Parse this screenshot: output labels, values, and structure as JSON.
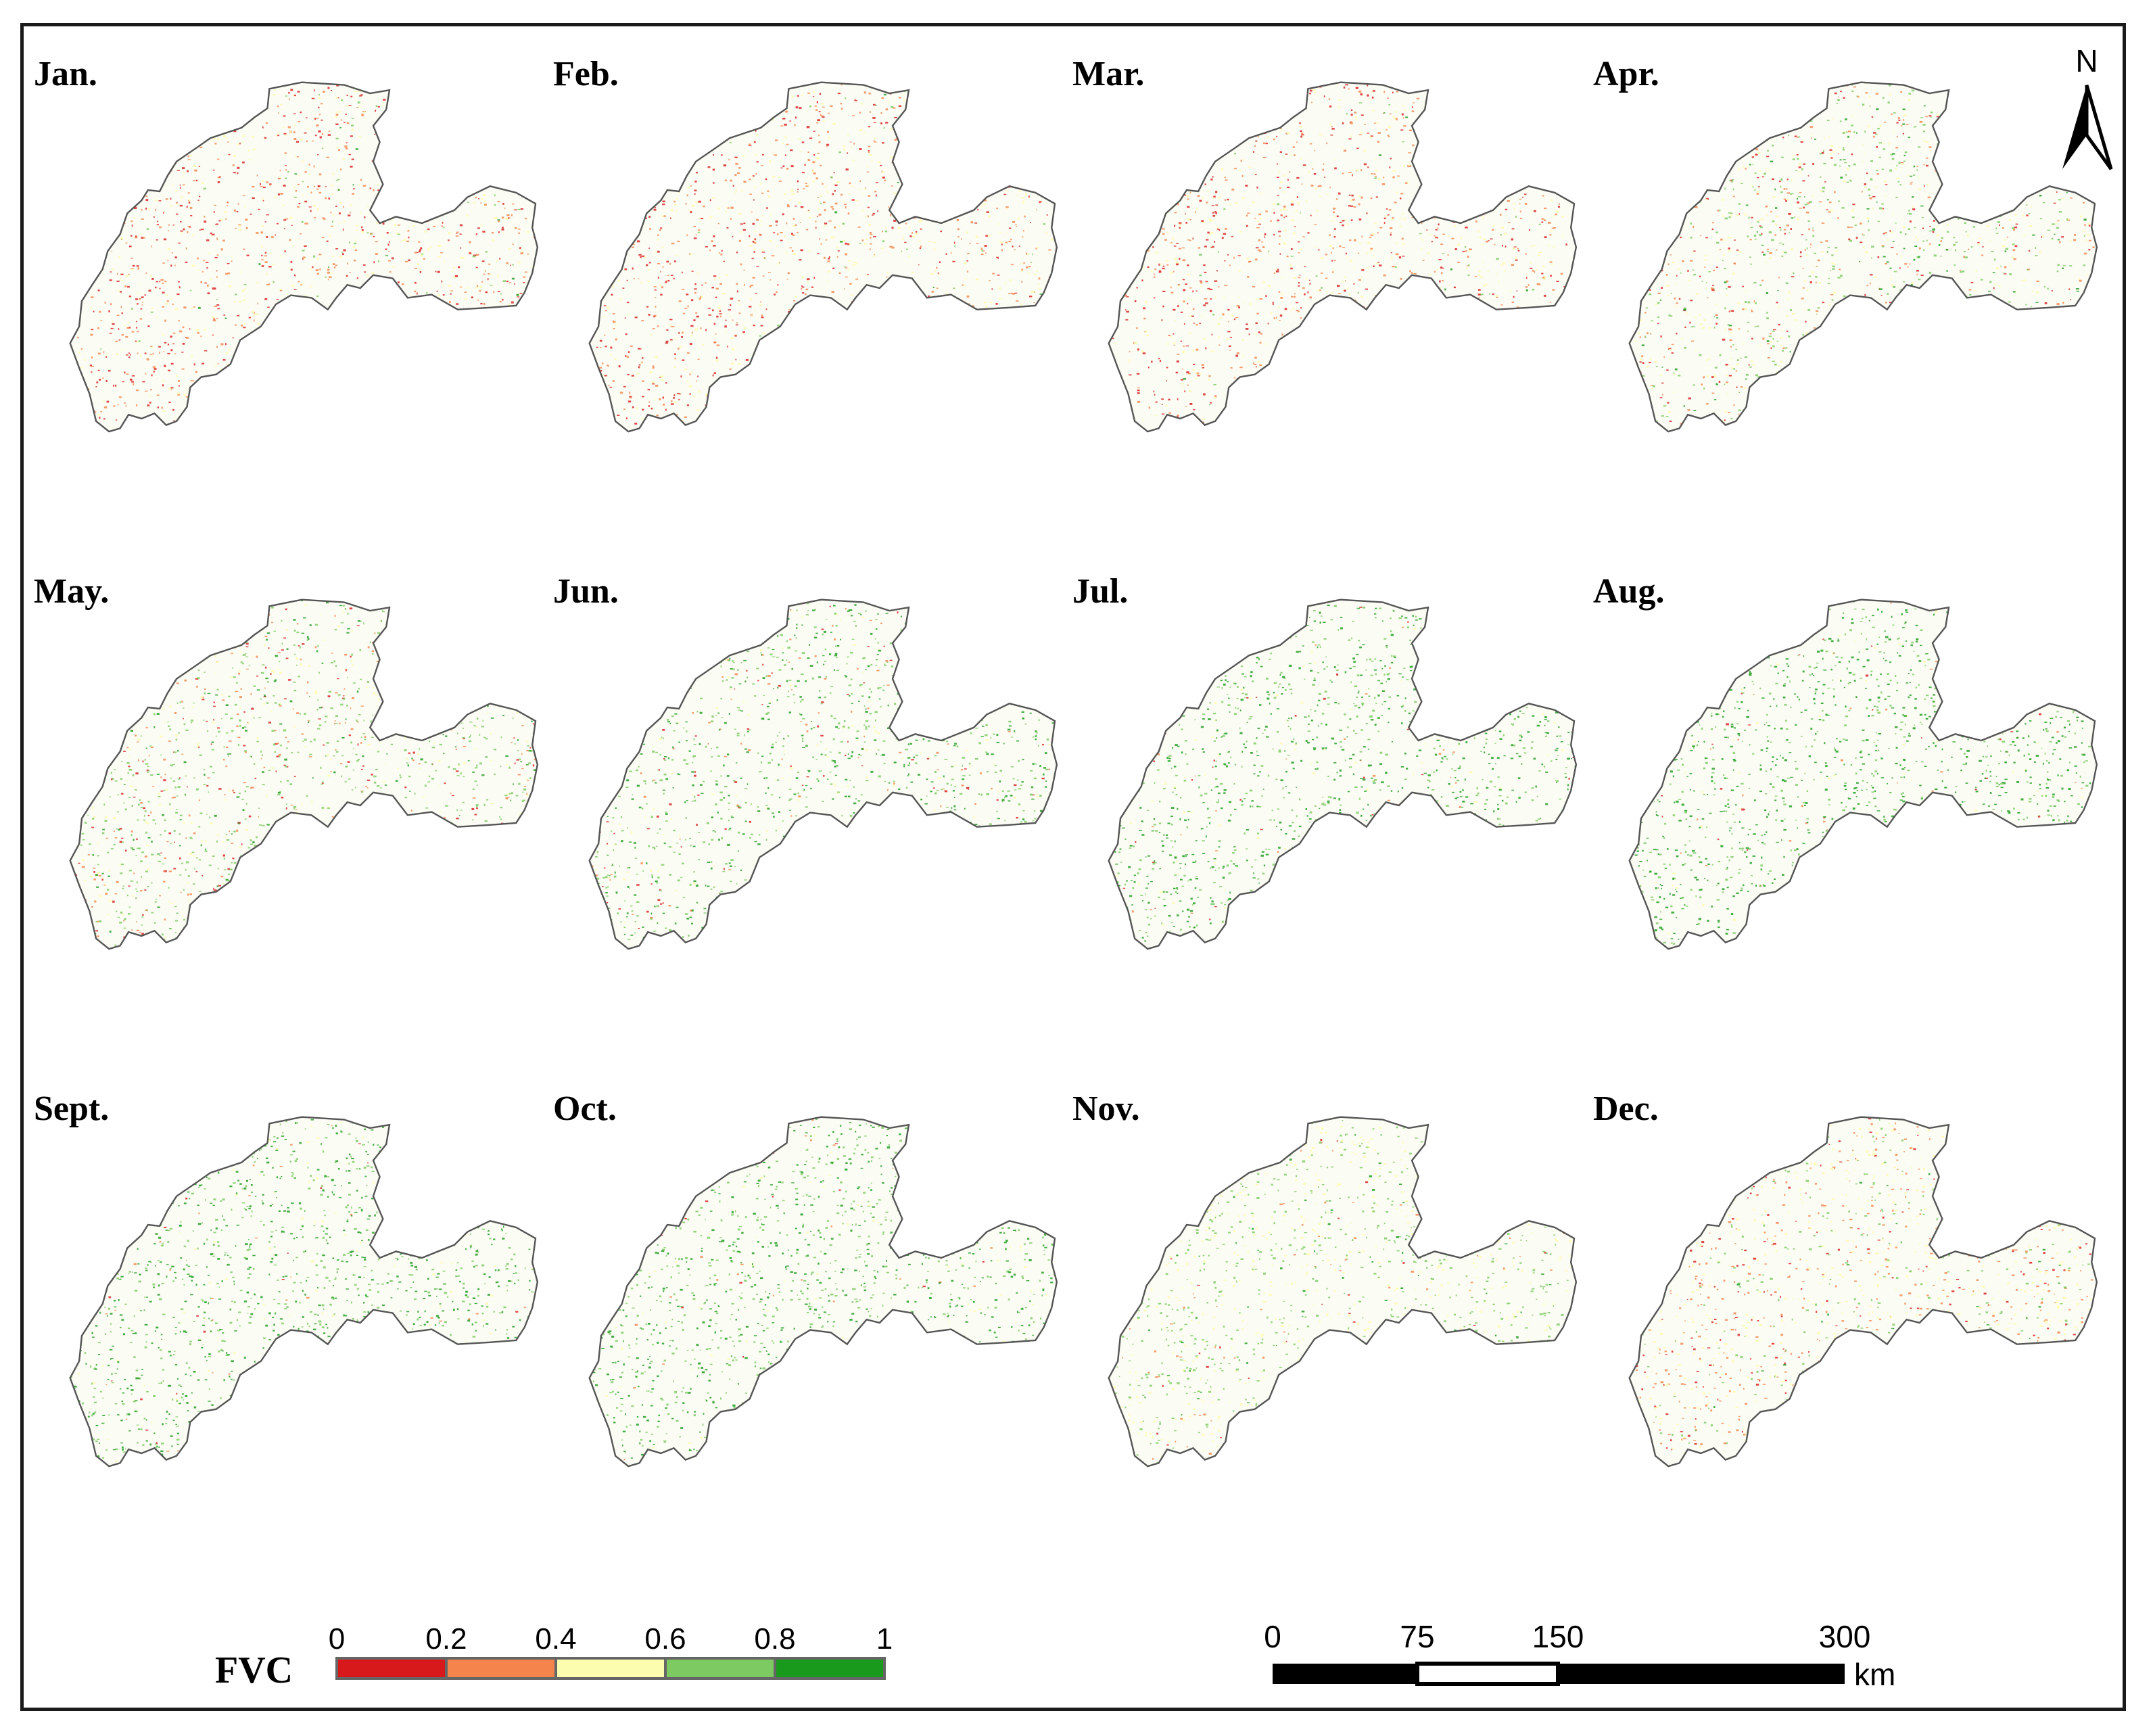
{
  "panels": [
    {
      "label": "Jan.",
      "mix": [
        0.3,
        0.3,
        0.3,
        0.07,
        0.03
      ]
    },
    {
      "label": "Feb.",
      "mix": [
        0.25,
        0.35,
        0.32,
        0.06,
        0.02
      ]
    },
    {
      "label": "Mar.",
      "mix": [
        0.25,
        0.35,
        0.32,
        0.06,
        0.02
      ]
    },
    {
      "label": "Apr.",
      "mix": [
        0.12,
        0.18,
        0.25,
        0.35,
        0.1
      ]
    },
    {
      "label": "May.",
      "mix": [
        0.1,
        0.15,
        0.15,
        0.45,
        0.15
      ]
    },
    {
      "label": "Jun.",
      "mix": [
        0.06,
        0.08,
        0.1,
        0.4,
        0.36
      ]
    },
    {
      "label": "Jul.",
      "mix": [
        0.02,
        0.03,
        0.07,
        0.38,
        0.5
      ]
    },
    {
      "label": "Aug.",
      "mix": [
        0.02,
        0.03,
        0.05,
        0.35,
        0.55
      ]
    },
    {
      "label": "Sept.",
      "mix": [
        0.01,
        0.02,
        0.07,
        0.4,
        0.5
      ]
    },
    {
      "label": "Oct.",
      "mix": [
        0.01,
        0.02,
        0.07,
        0.42,
        0.48
      ]
    },
    {
      "label": "Nov.",
      "mix": [
        0.02,
        0.05,
        0.4,
        0.45,
        0.08
      ]
    },
    {
      "label": "Dec.",
      "mix": [
        0.1,
        0.3,
        0.38,
        0.18,
        0.04
      ]
    }
  ],
  "legend": {
    "title": "FVC",
    "ticks": [
      "0",
      "0.2",
      "0.4",
      "0.6",
      "0.8",
      "1"
    ],
    "colors": [
      "#d7191c",
      "#f4844c",
      "#fdfdb0",
      "#7dc962",
      "#1a9a1c"
    ]
  },
  "scalebar": {
    "ticks": [
      "0",
      "75",
      "150",
      "300"
    ],
    "unit": "km"
  },
  "north_arrow": {
    "label": "N"
  },
  "colors": {
    "frame": "#1a1a1a",
    "outline": "#555555"
  }
}
